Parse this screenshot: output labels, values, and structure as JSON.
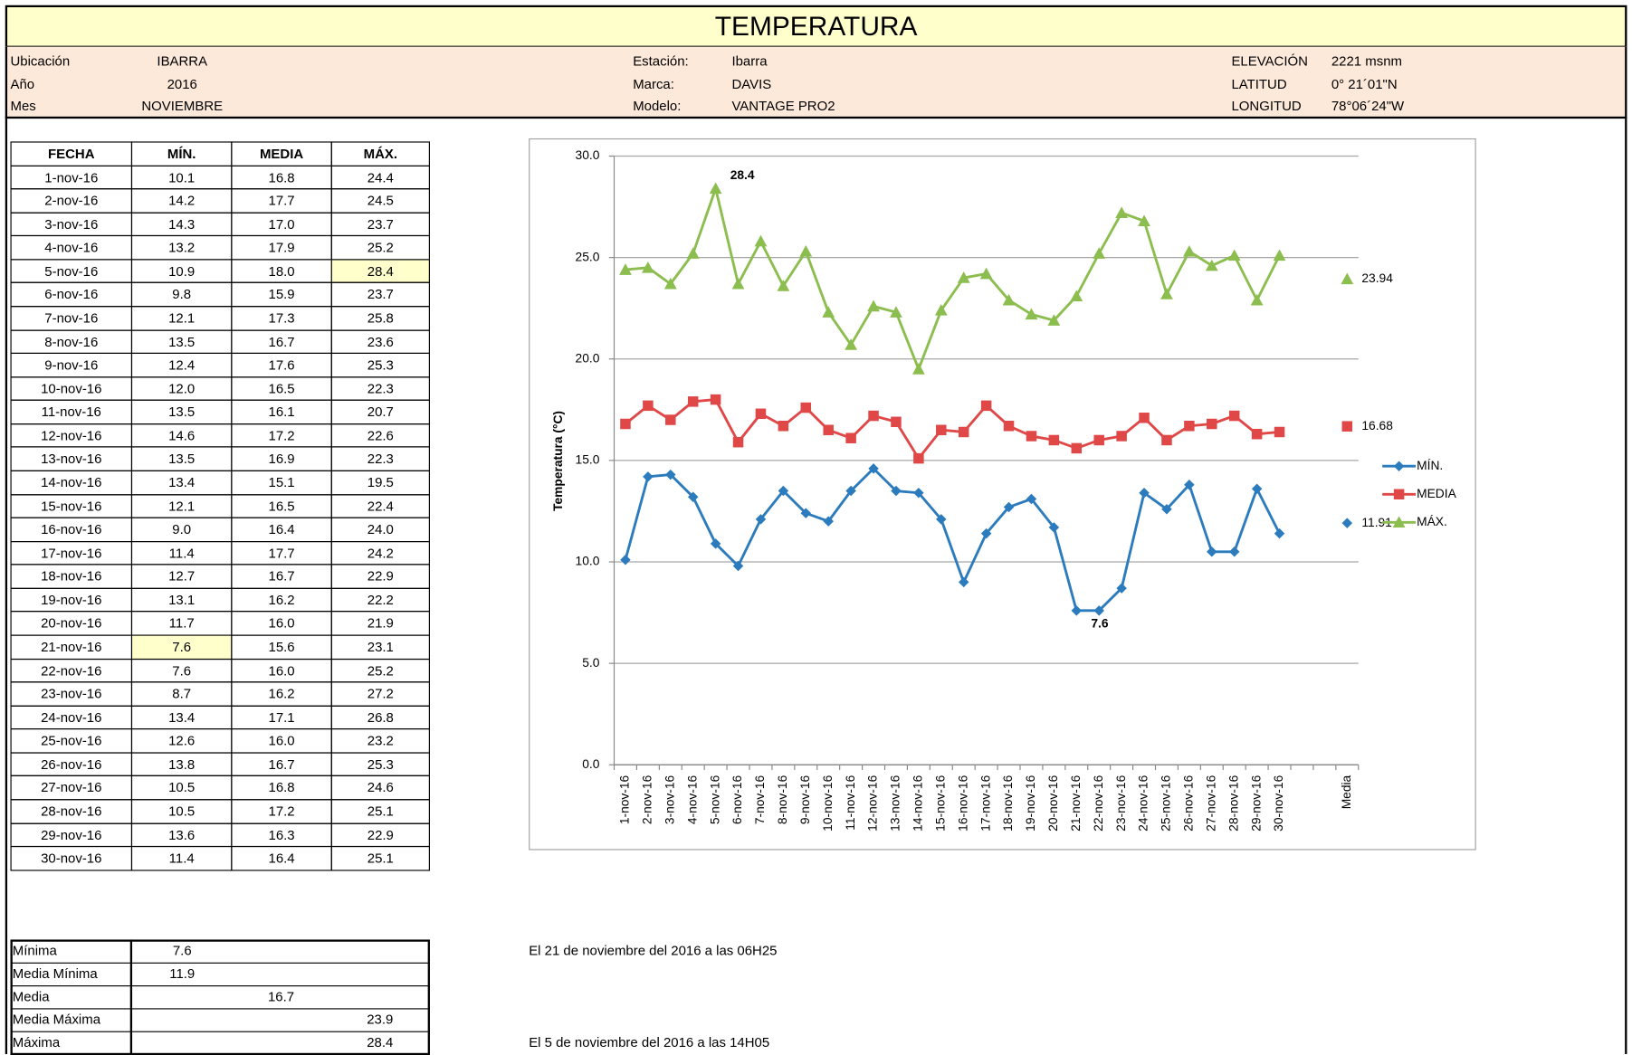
{
  "header": {
    "title": "TEMPERATURA",
    "groups": [
      [
        {
          "label": "Ubicación",
          "value": "IBARRA"
        },
        {
          "label": "Año",
          "value": "2016"
        },
        {
          "label": "Mes",
          "value": "NOVIEMBRE"
        }
      ],
      [
        {
          "label": "Estación:",
          "value": "Ibarra"
        },
        {
          "label": "Marca:",
          "value": "DAVIS"
        },
        {
          "label": "Modelo:",
          "value": "VANTAGE PRO2"
        }
      ],
      [
        {
          "label": "ELEVACIÓN",
          "value": "2221 msnm"
        },
        {
          "label": "LATITUD",
          "value": "0° 21´01\"N"
        },
        {
          "label": "LONGITUD",
          "value": "78°06´24\"W"
        }
      ]
    ]
  },
  "table": {
    "header": [
      "FECHA",
      "MÍN.",
      "MEDIA",
      "MÁX."
    ],
    "rows": [
      [
        "1-nov-16",
        "10.1",
        "16.8",
        "24.4"
      ],
      [
        "2-nov-16",
        "14.2",
        "17.7",
        "24.5"
      ],
      [
        "3-nov-16",
        "14.3",
        "17.0",
        "23.7"
      ],
      [
        "4-nov-16",
        "13.2",
        "17.9",
        "25.2"
      ],
      [
        "5-nov-16",
        "10.9",
        "18.0",
        "28.4"
      ],
      [
        "6-nov-16",
        "9.8",
        "15.9",
        "23.7"
      ],
      [
        "7-nov-16",
        "12.1",
        "17.3",
        "25.8"
      ],
      [
        "8-nov-16",
        "13.5",
        "16.7",
        "23.6"
      ],
      [
        "9-nov-16",
        "12.4",
        "17.6",
        "25.3"
      ],
      [
        "10-nov-16",
        "12.0",
        "16.5",
        "22.3"
      ],
      [
        "11-nov-16",
        "13.5",
        "16.1",
        "20.7"
      ],
      [
        "12-nov-16",
        "14.6",
        "17.2",
        "22.6"
      ],
      [
        "13-nov-16",
        "13.5",
        "16.9",
        "22.3"
      ],
      [
        "14-nov-16",
        "13.4",
        "15.1",
        "19.5"
      ],
      [
        "15-nov-16",
        "12.1",
        "16.5",
        "22.4"
      ],
      [
        "16-nov-16",
        "9.0",
        "16.4",
        "24.0"
      ],
      [
        "17-nov-16",
        "11.4",
        "17.7",
        "24.2"
      ],
      [
        "18-nov-16",
        "12.7",
        "16.7",
        "22.9"
      ],
      [
        "19-nov-16",
        "13.1",
        "16.2",
        "22.2"
      ],
      [
        "20-nov-16",
        "11.7",
        "16.0",
        "21.9"
      ],
      [
        "21-nov-16",
        "7.6",
        "15.6",
        "23.1"
      ],
      [
        "22-nov-16",
        "7.6",
        "16.0",
        "25.2"
      ],
      [
        "23-nov-16",
        "8.7",
        "16.2",
        "27.2"
      ],
      [
        "24-nov-16",
        "13.4",
        "17.1",
        "26.8"
      ],
      [
        "25-nov-16",
        "12.6",
        "16.0",
        "23.2"
      ],
      [
        "26-nov-16",
        "13.8",
        "16.7",
        "25.3"
      ],
      [
        "27-nov-16",
        "10.5",
        "16.8",
        "24.6"
      ],
      [
        "28-nov-16",
        "10.5",
        "17.2",
        "25.1"
      ],
      [
        "29-nov-16",
        "13.6",
        "16.3",
        "22.9"
      ],
      [
        "30-nov-16",
        "11.4",
        "16.4",
        "25.1"
      ]
    ],
    "highlighted_cells": [
      {
        "row": 4,
        "col": 3
      },
      {
        "row": 20,
        "col": 1
      }
    ],
    "highlight_color": "#ffffcc"
  },
  "summary": {
    "rows": [
      {
        "cells": [
          "Mínima",
          "7.6",
          null,
          null
        ],
        "note": "El 21 de noviembre del 2016 a las 06H25"
      },
      {
        "cells": [
          "Media Mínima",
          "11.9",
          null,
          null
        ],
        "note": null
      },
      {
        "cells": [
          "Media",
          null,
          "16.7",
          null
        ],
        "note": null
      },
      {
        "cells": [
          "Media Máxima",
          null,
          null,
          "23.9"
        ],
        "note": null
      },
      {
        "cells": [
          "Máxima",
          null,
          null,
          "28.4"
        ],
        "note": "El 5 de noviembre del 2016 a las 14H05"
      }
    ]
  },
  "chart_data": {
    "type": "line",
    "y_label": "Temperatura (°C)",
    "categories": [
      "1-nov-16",
      "2-nov-16",
      "3-nov-16",
      "4-nov-16",
      "5-nov-16",
      "6-nov-16",
      "7-nov-16",
      "8-nov-16",
      "9-nov-16",
      "10-nov-16",
      "11-nov-16",
      "12-nov-16",
      "13-nov-16",
      "14-nov-16",
      "15-nov-16",
      "16-nov-16",
      "17-nov-16",
      "18-nov-16",
      "19-nov-16",
      "20-nov-16",
      "21-nov-16",
      "22-nov-16",
      "23-nov-16",
      "24-nov-16",
      "25-nov-16",
      "26-nov-16",
      "27-nov-16",
      "28-nov-16",
      "29-nov-16",
      "30-nov-16",
      null,
      null,
      "Media"
    ],
    "series": [
      {
        "name": "MÍN.",
        "color": "#2b7bbd",
        "marker": "diamond",
        "values": [
          10.1,
          14.2,
          14.3,
          13.2,
          10.9,
          9.8,
          12.1,
          13.5,
          12.4,
          12.0,
          13.5,
          14.6,
          13.5,
          13.4,
          12.1,
          9.0,
          11.4,
          12.7,
          13.1,
          11.7,
          7.6,
          7.6,
          8.7,
          13.4,
          12.6,
          13.8,
          10.5,
          10.5,
          13.6,
          11.4,
          null,
          null,
          11.91
        ],
        "value_labels": [
          null,
          null,
          null,
          null,
          null,
          null,
          null,
          null,
          null,
          null,
          null,
          null,
          null,
          null,
          null,
          null,
          null,
          null,
          null,
          null,
          "7.6",
          null,
          null,
          null,
          null,
          null,
          null,
          null,
          null,
          null,
          null,
          null,
          "11.91"
        ]
      },
      {
        "name": "MEDIA",
        "color": "#e04848",
        "marker": "square",
        "values": [
          16.8,
          17.7,
          17.0,
          17.9,
          18.0,
          15.9,
          17.3,
          16.7,
          17.6,
          16.5,
          16.1,
          17.2,
          16.9,
          15.1,
          16.5,
          16.4,
          17.7,
          16.7,
          16.2,
          16.0,
          15.6,
          16.0,
          16.2,
          17.1,
          16.0,
          16.7,
          16.8,
          17.2,
          16.3,
          16.4,
          null,
          null,
          16.68
        ],
        "value_labels": [
          null,
          null,
          null,
          null,
          null,
          null,
          null,
          null,
          null,
          null,
          null,
          null,
          null,
          null,
          null,
          null,
          null,
          null,
          null,
          null,
          null,
          null,
          null,
          null,
          null,
          null,
          null,
          null,
          null,
          null,
          null,
          null,
          "16.68"
        ]
      },
      {
        "name": "MÁX.",
        "color": "#8cbd4f",
        "marker": "triangle",
        "values": [
          24.4,
          24.5,
          23.7,
          25.2,
          28.4,
          23.7,
          25.8,
          23.6,
          25.3,
          22.3,
          20.7,
          22.6,
          22.3,
          19.5,
          22.4,
          24.0,
          24.2,
          22.9,
          22.2,
          21.9,
          23.1,
          25.2,
          27.2,
          26.8,
          23.2,
          25.3,
          24.6,
          25.1,
          22.9,
          25.1,
          null,
          null,
          23.94
        ],
        "value_labels": [
          null,
          null,
          null,
          null,
          "28.4",
          null,
          null,
          null,
          null,
          null,
          null,
          null,
          null,
          null,
          null,
          null,
          null,
          null,
          null,
          null,
          null,
          null,
          null,
          null,
          null,
          null,
          null,
          null,
          null,
          null,
          null,
          null,
          "23.94"
        ]
      }
    ],
    "ylim": [
      0,
      30
    ],
    "yticks": [
      {
        "value": 0,
        "label": "0.0"
      },
      {
        "value": 5,
        "label": "5.0"
      },
      {
        "value": 10,
        "label": "10.0"
      },
      {
        "value": 15,
        "label": "15.0"
      },
      {
        "value": 20,
        "label": "20.0"
      },
      {
        "value": 25,
        "label": "25.0"
      },
      {
        "value": 30,
        "label": "30.0"
      }
    ],
    "grid": true,
    "legend": "right"
  }
}
